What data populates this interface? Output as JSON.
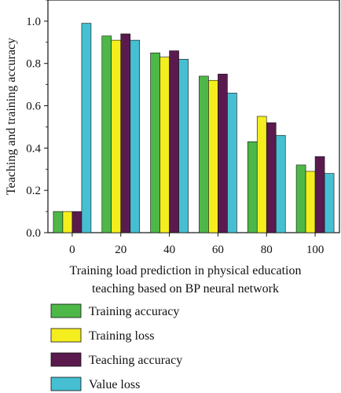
{
  "chart_data": {
    "type": "bar",
    "title": "",
    "xlabel_lines": [
      "Training load prediction in physical education",
      "teaching based on BP neural network"
    ],
    "ylabel": "Teaching and training accuracy",
    "categories": [
      "0",
      "20",
      "40",
      "60",
      "80",
      "100"
    ],
    "ylim": [
      0,
      1.1
    ],
    "yticks": [
      "0.0",
      "0.2",
      "0.4",
      "0.6",
      "0.8",
      "1.0"
    ],
    "series": [
      {
        "name": "Training accuracy",
        "color": "#4db848",
        "values": [
          0.1,
          0.93,
          0.85,
          0.74,
          0.43,
          0.32
        ]
      },
      {
        "name": "Training loss",
        "color": "#f5ee1f",
        "values": [
          0.1,
          0.91,
          0.83,
          0.72,
          0.55,
          0.29
        ]
      },
      {
        "name": "Teaching accuracy",
        "color": "#5a1a4e",
        "values": [
          0.1,
          0.94,
          0.86,
          0.75,
          0.52,
          0.36
        ]
      },
      {
        "name": "Value loss",
        "color": "#45bfd1",
        "values": [
          0.99,
          0.91,
          0.82,
          0.66,
          0.46,
          0.28
        ]
      }
    ],
    "grid": false,
    "legend_position": "below"
  }
}
